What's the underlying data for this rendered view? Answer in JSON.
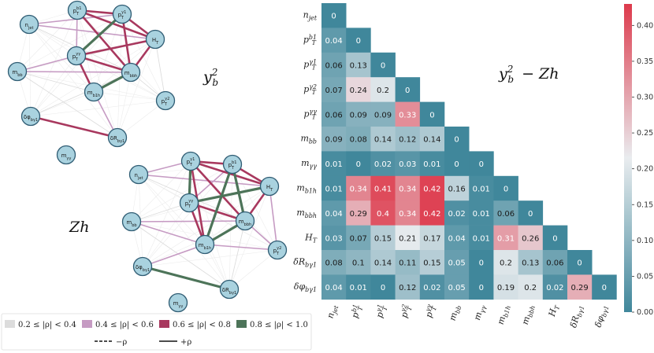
{
  "panel_labels": {
    "net1": "y_b^2",
    "net2": "Zh",
    "heatmap": "y_b^2 − Zh"
  },
  "legend": {
    "bins": [
      "0.2 ≤ |ρ| < 0.4",
      "0.4 ≤ |ρ| < 0.6",
      "0.6 ≤ |ρ| < 0.8",
      "0.8 ≤ |ρ| < 1.0"
    ],
    "bin_colors": [
      "#dcdcdc",
      "#c69bc3",
      "#a8385e",
      "#4d7459"
    ],
    "neg": "−ρ",
    "pos": "+ρ"
  },
  "colorbar_ticks": [
    "0.00",
    "0.05",
    "0.10",
    "0.15",
    "0.20",
    "0.25",
    "0.30",
    "0.35",
    "0.40"
  ],
  "colors": {
    "low": "#40879b",
    "mid": "#e9ecef",
    "high": "#dd3a4c",
    "node_fill": "#a9d2df",
    "node_stroke": "#2f5c73"
  },
  "chart_data": {
    "type": "heatmap",
    "title": "y_b^2 − Zh",
    "variables": [
      "n_jet",
      "p_T^b1",
      "p_T^γ1",
      "p_T^γ2",
      "p_T^γγ",
      "m_bb",
      "m_γγ",
      "m_b1h",
      "m_bbh",
      "H_T",
      "δR_bγ1",
      "δφ_bγ1"
    ],
    "value_range": [
      0.0,
      0.43
    ],
    "matrix": [
      [
        0
      ],
      [
        0.04,
        0
      ],
      [
        0.06,
        0.13,
        0
      ],
      [
        0.07,
        0.24,
        0.2,
        0
      ],
      [
        0.06,
        0.09,
        0.09,
        0.33,
        0
      ],
      [
        0.09,
        0.08,
        0.14,
        0.12,
        0.14,
        0
      ],
      [
        0.01,
        0,
        0.02,
        0.03,
        0.01,
        0,
        0
      ],
      [
        0.01,
        0.34,
        0.41,
        0.34,
        0.42,
        0.16,
        0.01,
        0
      ],
      [
        0.04,
        0.29,
        0.4,
        0.34,
        0.42,
        0.02,
        0.01,
        0.06,
        0
      ],
      [
        0.03,
        0.07,
        0.15,
        0.21,
        0.17,
        0.04,
        0.01,
        0.31,
        0.26,
        0
      ],
      [
        0.08,
        0.1,
        0.14,
        0.11,
        0.15,
        0.05,
        0,
        0.2,
        0.13,
        0.06,
        0
      ],
      [
        0.04,
        0.01,
        0,
        0.12,
        0.02,
        0.05,
        0,
        0.19,
        0.2,
        0.02,
        0.29,
        0
      ]
    ]
  },
  "networks": [
    {
      "name": "y_b^2",
      "nodes": [
        {
          "id": "njet",
          "label": "n_jet"
        },
        {
          "id": "pb1",
          "label": "p_T^b1"
        },
        {
          "id": "pg1",
          "label": "p_T^γ1"
        },
        {
          "id": "HT",
          "label": "H_T"
        },
        {
          "id": "pgg",
          "label": "p_T^γγ"
        },
        {
          "id": "mbb",
          "label": "m_bb"
        },
        {
          "id": "mbbh",
          "label": "m_bbh"
        },
        {
          "id": "mb1h",
          "label": "m_b1h"
        },
        {
          "id": "pg2",
          "label": "p_T^γ2"
        },
        {
          "id": "dphi",
          "label": "δφ_bγ1"
        },
        {
          "id": "dR",
          "label": "δR_bγ1"
        },
        {
          "id": "mgg",
          "label": "m_γγ"
        }
      ],
      "edges": [
        {
          "a": "pg1",
          "b": "pgg",
          "bin": 3
        },
        {
          "a": "mbbh",
          "b": "mb1h",
          "bin": 3
        },
        {
          "a": "pg1",
          "b": "pb1",
          "bin": 2
        },
        {
          "a": "pg1",
          "b": "HT",
          "bin": 2
        },
        {
          "a": "pb1",
          "b": "HT",
          "bin": 2
        },
        {
          "a": "pgg",
          "b": "HT",
          "bin": 2
        },
        {
          "a": "pgg",
          "b": "mbbh",
          "bin": 2
        },
        {
          "a": "pgg",
          "b": "mb1h",
          "bin": 2
        },
        {
          "a": "HT",
          "b": "mbbh",
          "bin": 2
        },
        {
          "a": "pg1",
          "b": "mbbh",
          "bin": 2
        },
        {
          "a": "pb1",
          "b": "mbbh",
          "bin": 2
        },
        {
          "a": "dphi",
          "b": "dR",
          "bin": 2
        },
        {
          "a": "njet",
          "b": "pg1",
          "bin": 1
        },
        {
          "a": "njet",
          "b": "HT",
          "bin": 1
        },
        {
          "a": "mbb",
          "b": "mbbh",
          "bin": 1
        },
        {
          "a": "mbb",
          "b": "pgg",
          "bin": 1
        },
        {
          "a": "mb1h",
          "b": "dR",
          "bin": 1
        },
        {
          "a": "pb1",
          "b": "pgg",
          "bin": 1
        },
        {
          "a": "njet",
          "b": "mbbh",
          "bin": 0
        },
        {
          "a": "mbb",
          "b": "mb1h",
          "bin": 0
        },
        {
          "a": "pg2",
          "b": "HT",
          "bin": 0
        },
        {
          "a": "mbb",
          "b": "dR",
          "bin": 0
        },
        {
          "a": "pg2",
          "b": "mbbh",
          "bin": 0
        },
        {
          "a": "dphi",
          "b": "mbbh",
          "bin": 0
        }
      ]
    },
    {
      "name": "Zh",
      "nodes": [
        {
          "id": "njet",
          "label": "n_jet"
        },
        {
          "id": "pg1",
          "label": "p_T^γ1"
        },
        {
          "id": "pb1",
          "label": "p_T^b1"
        },
        {
          "id": "HT",
          "label": "H_T"
        },
        {
          "id": "pgg",
          "label": "p_T^γγ"
        },
        {
          "id": "mbb",
          "label": "m_bb"
        },
        {
          "id": "mbbh",
          "label": "m_bbh"
        },
        {
          "id": "mb1h",
          "label": "m_b1h"
        },
        {
          "id": "pg2",
          "label": "p_T^γ2"
        },
        {
          "id": "dphi",
          "label": "δφ_bγ1"
        },
        {
          "id": "dR",
          "label": "δR_bγ1"
        },
        {
          "id": "mgg",
          "label": "m_γγ"
        }
      ],
      "edges": [
        {
          "a": "pg1",
          "b": "pgg",
          "bin": 3
        },
        {
          "a": "pb1",
          "b": "mb1h",
          "bin": 3
        },
        {
          "a": "pgg",
          "b": "HT",
          "bin": 3
        },
        {
          "a": "mbbh",
          "b": "mb1h",
          "bin": 3
        },
        {
          "a": "dphi",
          "b": "dR",
          "bin": 3
        },
        {
          "a": "pb1",
          "b": "mbbh",
          "bin": 3
        },
        {
          "a": "pg1",
          "b": "pb1",
          "bin": 2
        },
        {
          "a": "pg1",
          "b": "HT",
          "bin": 2
        },
        {
          "a": "pb1",
          "b": "HT",
          "bin": 2
        },
        {
          "a": "pgg",
          "b": "mbbh",
          "bin": 2
        },
        {
          "a": "pgg",
          "b": "mb1h",
          "bin": 2
        },
        {
          "a": "HT",
          "b": "mbbh",
          "bin": 2
        },
        {
          "a": "pg1",
          "b": "mb1h",
          "bin": 2
        },
        {
          "a": "pg1",
          "b": "mbbh",
          "bin": 2
        },
        {
          "a": "njet",
          "b": "HT",
          "bin": 1
        },
        {
          "a": "njet",
          "b": "pg1",
          "bin": 1
        },
        {
          "a": "mbb",
          "b": "mbbh",
          "bin": 1
        },
        {
          "a": "mbb",
          "b": "mb1h",
          "bin": 1
        },
        {
          "a": "mbbh",
          "b": "pg2",
          "bin": 1
        },
        {
          "a": "mb1h",
          "b": "pg2",
          "bin": 1
        },
        {
          "a": "mb1h",
          "b": "dphi",
          "bin": 1
        },
        {
          "a": "HT",
          "b": "pg2",
          "bin": 1
        },
        {
          "a": "pb1",
          "b": "pgg",
          "bin": 1
        },
        {
          "a": "mbb",
          "b": "pgg",
          "bin": 0
        },
        {
          "a": "njet",
          "b": "mbbh",
          "bin": 0
        },
        {
          "a": "dR",
          "b": "mbbh",
          "bin": 0
        },
        {
          "a": "mbb",
          "b": "dR",
          "bin": 0
        }
      ]
    }
  ]
}
